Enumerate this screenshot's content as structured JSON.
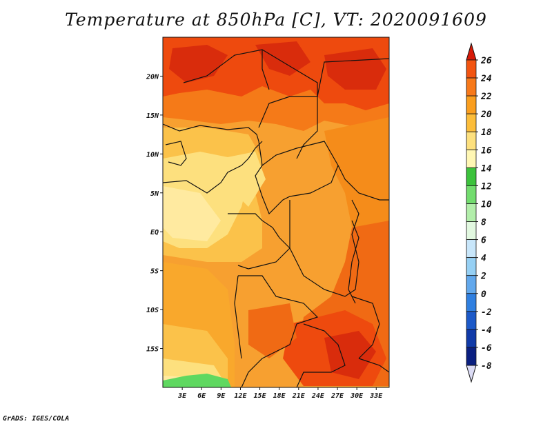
{
  "title": "Temperature at 850hPa [C], VT: 2020091609",
  "credit": "GrADS: IGES/COLA",
  "colors": {
    "land_shapes": [
      "#f7b23a",
      "#fde07e",
      "#f58c1a",
      "#ee4a0e",
      "#d92c0c",
      "#ffeaa0",
      "#5fd860"
    ],
    "border": "#111111"
  },
  "chart_data": {
    "type": "heatmap",
    "title": "Temperature at 850hPa [C], VT: 2020091609",
    "xaxis": {
      "ticks": [
        "3E",
        "6E",
        "9E",
        "12E",
        "15E",
        "18E",
        "21E",
        "24E",
        "27E",
        "30E",
        "33E"
      ],
      "values": [
        3,
        6,
        9,
        12,
        15,
        18,
        21,
        24,
        27,
        30,
        33
      ],
      "range": [
        0,
        35
      ]
    },
    "yaxis": {
      "ticks": [
        "20N",
        "15N",
        "10N",
        "5N",
        "EQ",
        "5S",
        "10S",
        "15S"
      ],
      "values": [
        20,
        15,
        10,
        5,
        0,
        -5,
        -10,
        -15
      ],
      "range": [
        -20,
        25
      ]
    },
    "colorbar": {
      "labels": [
        "26",
        "24",
        "22",
        "20",
        "18",
        "16",
        "14",
        "12",
        "10",
        "8",
        "6",
        "4",
        "2",
        "0",
        "-2",
        "-4",
        "-6",
        "-8"
      ],
      "levels": [
        26,
        24,
        22,
        20,
        18,
        16,
        14,
        12,
        10,
        8,
        6,
        4,
        2,
        0,
        -2,
        -4,
        -6,
        -8
      ],
      "colors": [
        "#ee2c0a",
        "#f25410",
        "#f7791a",
        "#fa9e1e",
        "#fcbd3a",
        "#fde07e",
        "#fff7b4",
        "#3cc23c",
        "#72dc6e",
        "#b2eeaa",
        "#e2f8e0",
        "#c8e6fa",
        "#96d0f4",
        "#62a8ec",
        "#2f7fe0",
        "#1c59c8",
        "#103aa8",
        "#0a1f80",
        "#00107a"
      ],
      "overflow_top": "#d71a08",
      "underflow_bottom": "#dcdcf5"
    }
  }
}
